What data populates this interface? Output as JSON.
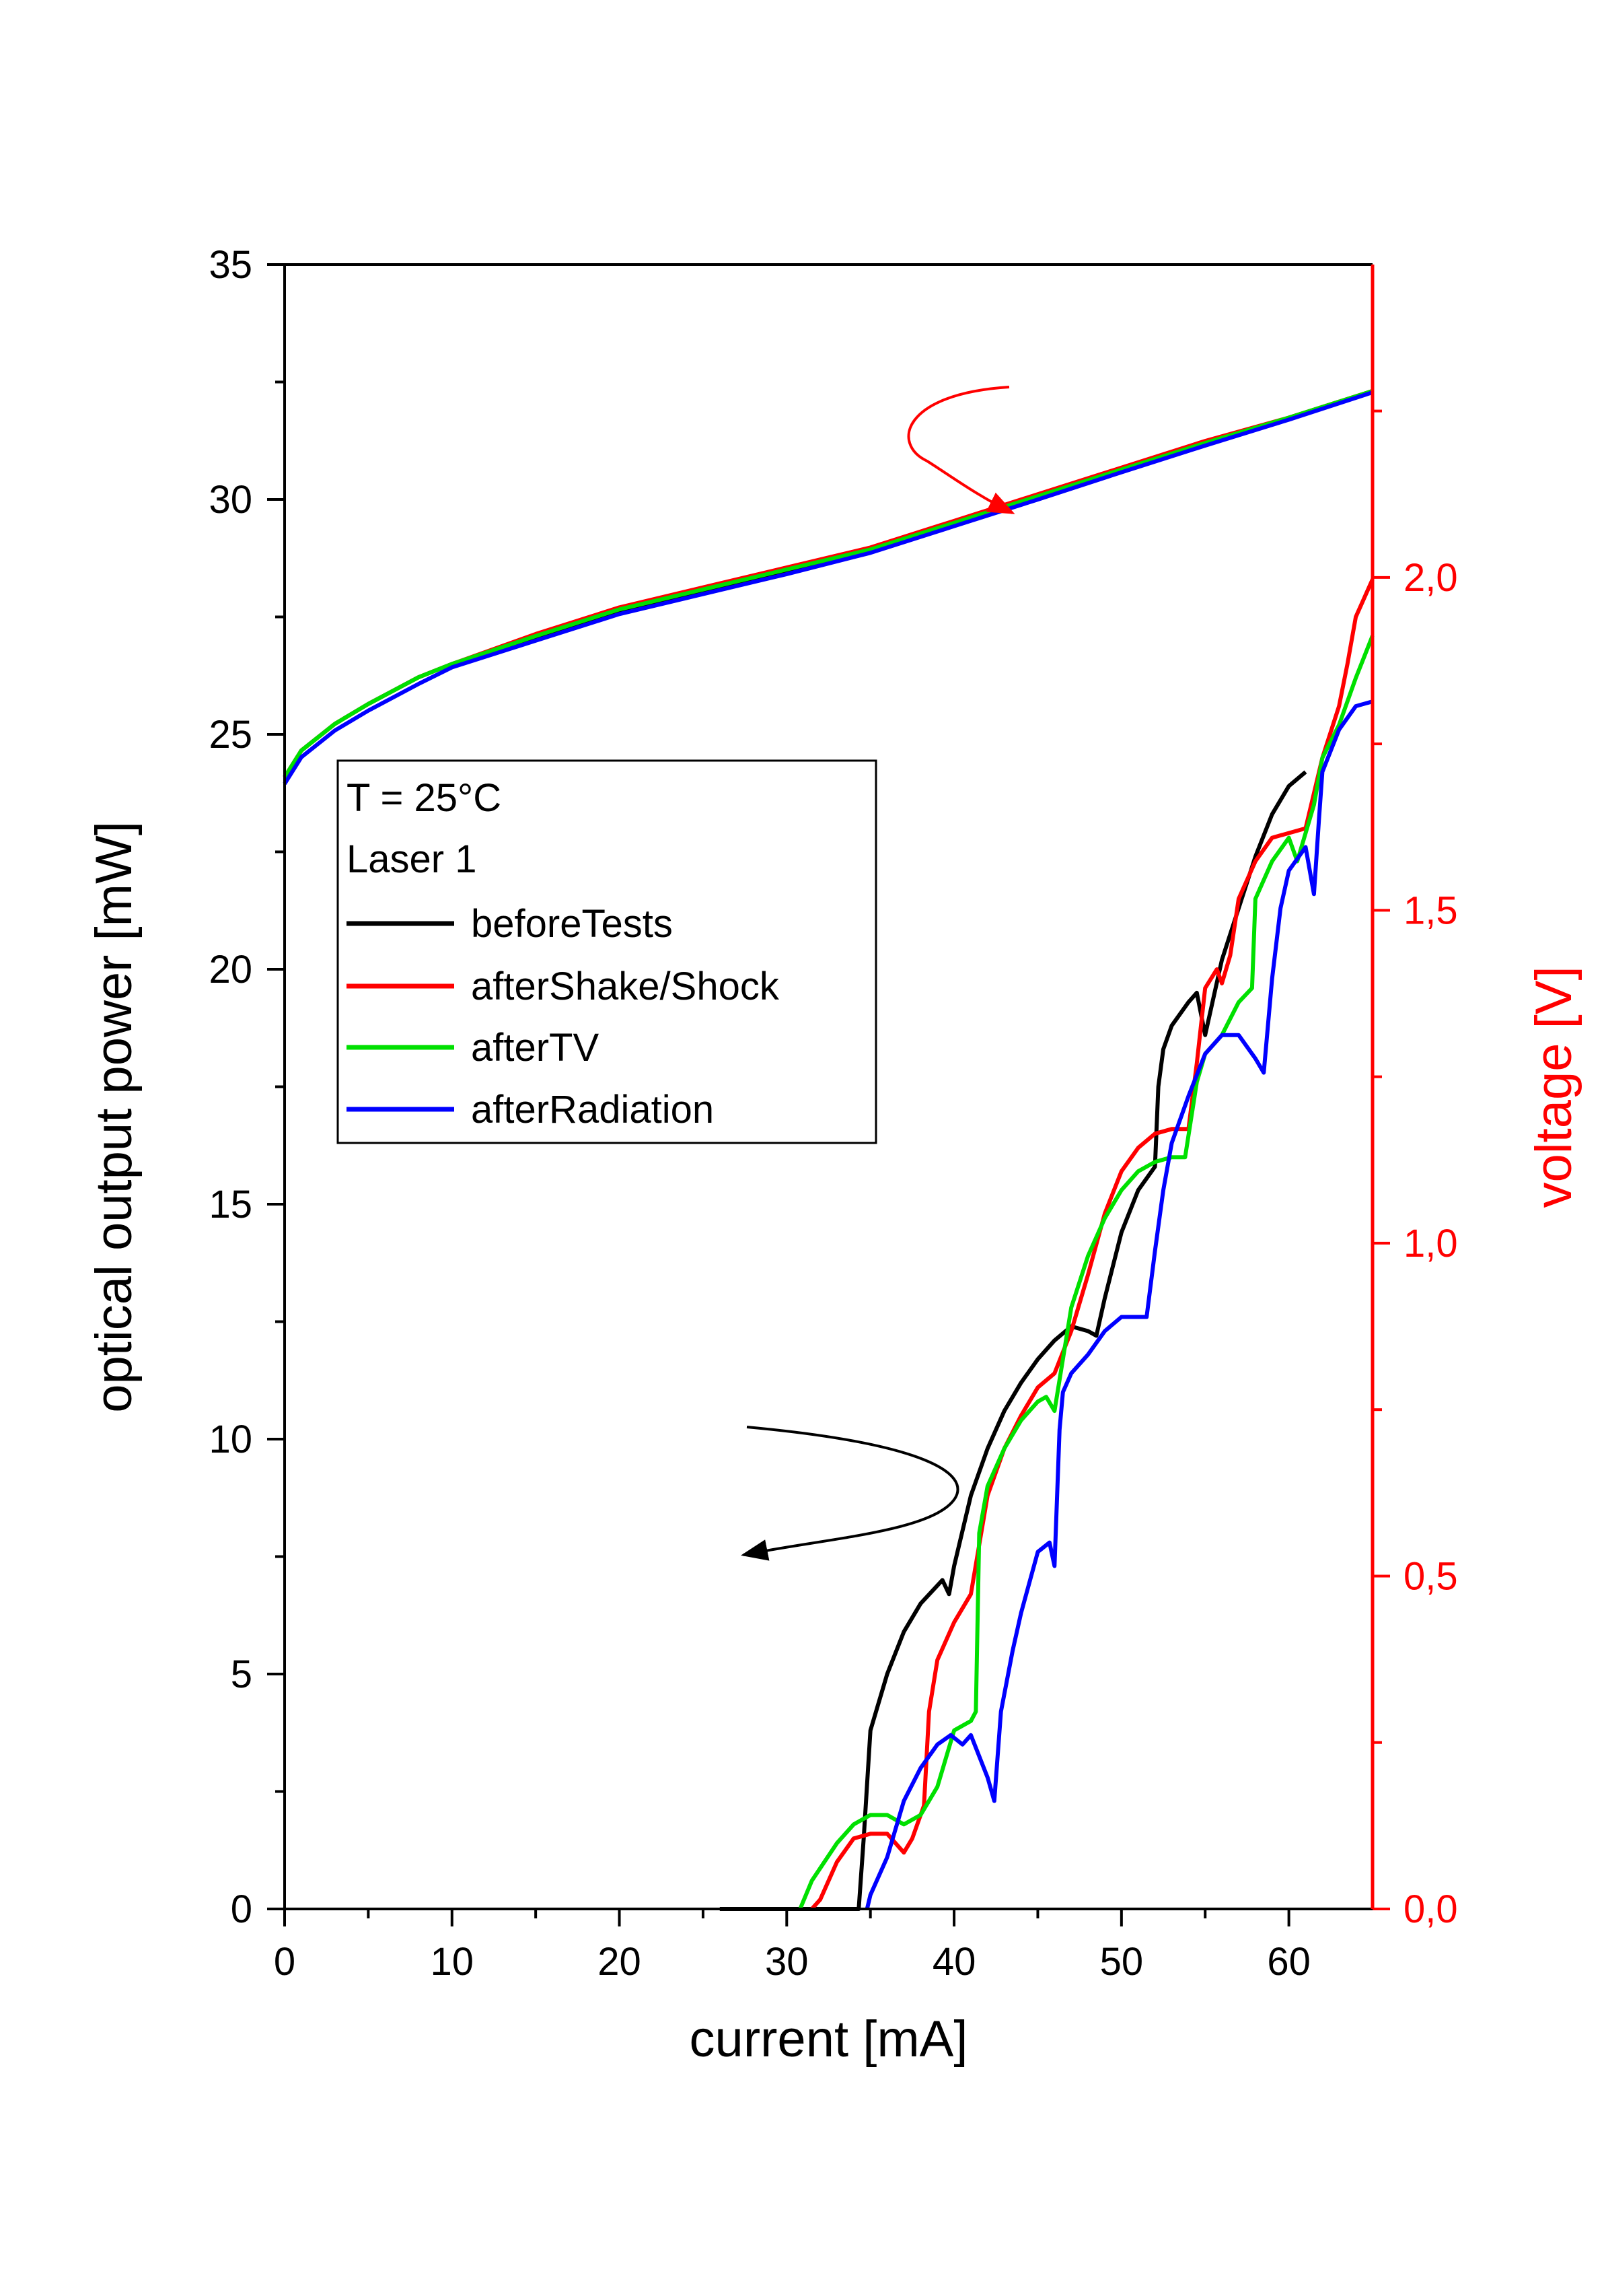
{
  "chart_data": {
    "type": "line",
    "title": "",
    "xlabel": "current [mA]",
    "ylabel": "optical output power [mW]",
    "y2label": "voltage [V]",
    "xlim": [
      0,
      65
    ],
    "ylim": [
      0,
      35
    ],
    "y2lim": [
      0,
      2.47
    ],
    "x_ticks": [
      0,
      10,
      20,
      30,
      40,
      50,
      60
    ],
    "x_tick_labels": [
      "0",
      "10",
      "20",
      "30",
      "40",
      "50",
      "60"
    ],
    "y_ticks": [
      0,
      5,
      10,
      15,
      20,
      25,
      30,
      35
    ],
    "y_tick_labels": [
      "0",
      "5",
      "10",
      "15",
      "20",
      "25",
      "30",
      "35"
    ],
    "y2_ticks": [
      0,
      0.5,
      1.0,
      1.5,
      2.0
    ],
    "y2_tick_labels": [
      "0,0",
      "0,5",
      "1,0",
      "1,5",
      "2,0"
    ],
    "colors": {
      "beforeTests": "#000000",
      "afterShakeShock": "#ff0000",
      "afterTV": "#00e000",
      "afterRadiation": "#0000ff",
      "right_axis": "#ff0000"
    },
    "legend": {
      "placement": "upper-left",
      "line1": "T = 25°C",
      "line2": "Laser 1",
      "entries": [
        "beforeTests",
        "afterShake/Shock",
        "afterTV",
        "afterRadiation"
      ]
    },
    "annotations": [
      {
        "text": "arrow pointing to right axis (voltage curves)",
        "color": "#ff0000"
      },
      {
        "text": "arrow pointing to left axis (power curves)",
        "color": "#000000"
      }
    ],
    "series": [
      {
        "name": "beforeTests",
        "axis": "y2",
        "group": "voltage",
        "points": [
          [
            0,
            1.7
          ],
          [
            1,
            1.74
          ],
          [
            3,
            1.78
          ],
          [
            5,
            1.81
          ],
          [
            8,
            1.85
          ],
          [
            10,
            1.87
          ],
          [
            15,
            1.91
          ],
          [
            20,
            1.95
          ],
          [
            25,
            1.98
          ],
          [
            30,
            2.01
          ],
          [
            35,
            2.04
          ],
          [
            40,
            2.08
          ],
          [
            45,
            2.12
          ],
          [
            50,
            2.16
          ],
          [
            55,
            2.2
          ],
          [
            60,
            2.24
          ],
          [
            65,
            2.28
          ]
        ]
      },
      {
        "name": "afterShake/Shock",
        "axis": "y2",
        "group": "voltage",
        "points": [
          [
            0,
            1.7
          ],
          [
            1,
            1.74
          ],
          [
            3,
            1.78
          ],
          [
            5,
            1.81
          ],
          [
            8,
            1.85
          ],
          [
            10,
            1.87
          ],
          [
            15,
            1.915
          ],
          [
            20,
            1.955
          ],
          [
            25,
            1.985
          ],
          [
            30,
            2.015
          ],
          [
            35,
            2.045
          ],
          [
            40,
            2.085
          ],
          [
            45,
            2.125
          ],
          [
            50,
            2.165
          ],
          [
            55,
            2.205
          ],
          [
            60,
            2.24
          ],
          [
            65,
            2.28
          ]
        ]
      },
      {
        "name": "afterTV",
        "axis": "y2",
        "group": "voltage",
        "points": [
          [
            0,
            1.7
          ],
          [
            1,
            1.74
          ],
          [
            3,
            1.78
          ],
          [
            5,
            1.81
          ],
          [
            8,
            1.85
          ],
          [
            10,
            1.87
          ],
          [
            15,
            1.912
          ],
          [
            20,
            1.952
          ],
          [
            25,
            1.982
          ],
          [
            30,
            2.012
          ],
          [
            35,
            2.042
          ],
          [
            40,
            2.082
          ],
          [
            45,
            2.122
          ],
          [
            50,
            2.162
          ],
          [
            55,
            2.202
          ],
          [
            60,
            2.24
          ],
          [
            65,
            2.28
          ]
        ]
      },
      {
        "name": "afterRadiation",
        "axis": "y2",
        "group": "voltage",
        "points": [
          [
            0,
            1.69
          ],
          [
            1,
            1.73
          ],
          [
            3,
            1.77
          ],
          [
            5,
            1.8
          ],
          [
            8,
            1.84
          ],
          [
            10,
            1.865
          ],
          [
            15,
            1.905
          ],
          [
            20,
            1.945
          ],
          [
            25,
            1.975
          ],
          [
            30,
            2.005
          ],
          [
            35,
            2.037
          ],
          [
            40,
            2.077
          ],
          [
            45,
            2.117
          ],
          [
            50,
            2.158
          ],
          [
            55,
            2.198
          ],
          [
            60,
            2.237
          ],
          [
            65,
            2.278
          ]
        ]
      },
      {
        "name": "beforeTests",
        "axis": "y",
        "group": "power",
        "points": [
          [
            26,
            0
          ],
          [
            34.3,
            0
          ],
          [
            34.6,
            1.5
          ],
          [
            35,
            3.8
          ],
          [
            36,
            5
          ],
          [
            37,
            5.9
          ],
          [
            38,
            6.5
          ],
          [
            39.3,
            7
          ],
          [
            39.7,
            6.7
          ],
          [
            40,
            7.3
          ],
          [
            41,
            8.8
          ],
          [
            42,
            9.8
          ],
          [
            43,
            10.6
          ],
          [
            44,
            11.2
          ],
          [
            45,
            11.7
          ],
          [
            46,
            12.1
          ],
          [
            47,
            12.4
          ],
          [
            48,
            12.3
          ],
          [
            48.5,
            12.2
          ],
          [
            49,
            13
          ],
          [
            50,
            14.4
          ],
          [
            51,
            15.3
          ],
          [
            52,
            15.8
          ],
          [
            52.2,
            17.5
          ],
          [
            52.5,
            18.3
          ],
          [
            53,
            18.8
          ],
          [
            54,
            19.3
          ],
          [
            54.5,
            19.5
          ],
          [
            55,
            18.6
          ],
          [
            56,
            20.2
          ],
          [
            57,
            21.3
          ],
          [
            58,
            22.4
          ],
          [
            59,
            23.3
          ],
          [
            60,
            23.9
          ],
          [
            61,
            24.2
          ]
        ]
      },
      {
        "name": "afterShake/Shock",
        "axis": "y",
        "group": "power",
        "points": [
          [
            31.5,
            0
          ],
          [
            32,
            0.2
          ],
          [
            33,
            1.0
          ],
          [
            34,
            1.5
          ],
          [
            35,
            1.6
          ],
          [
            36,
            1.6
          ],
          [
            37,
            1.2
          ],
          [
            37.5,
            1.5
          ],
          [
            37.8,
            1.8
          ],
          [
            38.2,
            2.2
          ],
          [
            38.5,
            4.2
          ],
          [
            39,
            5.3
          ],
          [
            40,
            6.1
          ],
          [
            41,
            6.7
          ],
          [
            42,
            8.8
          ],
          [
            43,
            9.8
          ],
          [
            44,
            10.5
          ],
          [
            45,
            11.1
          ],
          [
            46,
            11.4
          ],
          [
            47,
            12.3
          ],
          [
            48,
            13.5
          ],
          [
            49,
            14.8
          ],
          [
            50,
            15.7
          ],
          [
            51,
            16.2
          ],
          [
            52,
            16.5
          ],
          [
            53,
            16.6
          ],
          [
            54,
            16.6
          ],
          [
            54.5,
            18
          ],
          [
            55,
            19.6
          ],
          [
            55.7,
            20
          ],
          [
            56,
            19.7
          ],
          [
            56.5,
            20.3
          ],
          [
            57,
            21.5
          ],
          [
            58,
            22.3
          ],
          [
            59,
            22.8
          ],
          [
            60,
            22.9
          ],
          [
            61,
            23
          ],
          [
            62,
            24.5
          ],
          [
            63,
            25.6
          ],
          [
            63.5,
            26.5
          ],
          [
            64,
            27.5
          ],
          [
            65,
            28.3
          ]
        ]
      },
      {
        "name": "afterTV",
        "axis": "y",
        "group": "power",
        "points": [
          [
            30.8,
            0
          ],
          [
            31.5,
            0.6
          ],
          [
            33,
            1.4
          ],
          [
            34,
            1.8
          ],
          [
            35,
            2.0
          ],
          [
            36,
            2.0
          ],
          [
            37,
            1.8
          ],
          [
            38,
            2.0
          ],
          [
            39,
            2.6
          ],
          [
            40,
            3.8
          ],
          [
            41,
            4.0
          ],
          [
            41.3,
            4.2
          ],
          [
            41.5,
            8.0
          ],
          [
            42,
            9
          ],
          [
            43,
            9.8
          ],
          [
            44,
            10.4
          ],
          [
            45,
            10.8
          ],
          [
            45.5,
            10.9
          ],
          [
            46,
            10.6
          ],
          [
            47,
            12.8
          ],
          [
            48,
            13.9
          ],
          [
            49,
            14.7
          ],
          [
            50,
            15.3
          ],
          [
            51,
            15.7
          ],
          [
            52,
            15.9
          ],
          [
            53,
            16.0
          ],
          [
            53.8,
            16.0
          ],
          [
            54.5,
            17.6
          ],
          [
            55,
            18.2
          ],
          [
            56,
            18.6
          ],
          [
            57,
            19.3
          ],
          [
            57.8,
            19.6
          ],
          [
            58,
            21.5
          ],
          [
            59,
            22.3
          ],
          [
            60,
            22.8
          ],
          [
            60.5,
            22.3
          ],
          [
            61,
            22.9
          ],
          [
            61.5,
            23.5
          ],
          [
            62,
            24.5
          ],
          [
            63,
            25.2
          ],
          [
            64,
            26.2
          ],
          [
            65,
            27.1
          ]
        ]
      },
      {
        "name": "afterRadiation",
        "axis": "y",
        "group": "power",
        "points": [
          [
            34.8,
            0
          ],
          [
            35,
            0.3
          ],
          [
            36,
            1.1
          ],
          [
            37,
            2.3
          ],
          [
            38,
            3.0
          ],
          [
            39,
            3.5
          ],
          [
            39.8,
            3.7
          ],
          [
            40.5,
            3.5
          ],
          [
            41,
            3.7
          ],
          [
            42,
            2.8
          ],
          [
            42.4,
            2.3
          ],
          [
            42.8,
            4.2
          ],
          [
            43.5,
            5.5
          ],
          [
            44,
            6.3
          ],
          [
            45,
            7.6
          ],
          [
            45.7,
            7.8
          ],
          [
            46,
            7.3
          ],
          [
            46.3,
            10.2
          ],
          [
            46.5,
            11.0
          ],
          [
            47,
            11.4
          ],
          [
            48,
            11.8
          ],
          [
            49,
            12.3
          ],
          [
            50,
            12.6
          ],
          [
            51,
            12.6
          ],
          [
            51.5,
            12.6
          ],
          [
            52,
            14
          ],
          [
            52.5,
            15.3
          ],
          [
            53,
            16.3
          ],
          [
            54,
            17.3
          ],
          [
            55,
            18.2
          ],
          [
            56,
            18.6
          ],
          [
            57,
            18.6
          ],
          [
            58,
            18.1
          ],
          [
            58.5,
            17.8
          ],
          [
            59,
            19.8
          ],
          [
            59.5,
            21.3
          ],
          [
            60,
            22.1
          ],
          [
            61,
            22.6
          ],
          [
            61.5,
            21.6
          ],
          [
            61.8,
            23.2
          ],
          [
            62,
            24.2
          ],
          [
            63,
            25.1
          ],
          [
            64,
            25.6
          ],
          [
            65,
            25.7
          ]
        ]
      }
    ]
  }
}
